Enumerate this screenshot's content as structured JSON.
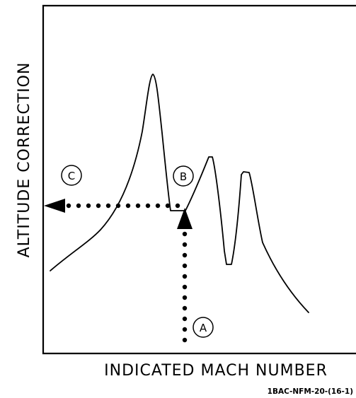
{
  "figure": {
    "x_axis_label": "INDICATED MACH NUMBER",
    "y_axis_label": "ALTITUDE CORRECTION",
    "reference_code": "1BAC-NFM-20-(16-1)",
    "markers": {
      "a": "A",
      "b": "B",
      "c": "C"
    }
  },
  "colors": {
    "line": "#000000",
    "background": "#ffffff"
  }
}
